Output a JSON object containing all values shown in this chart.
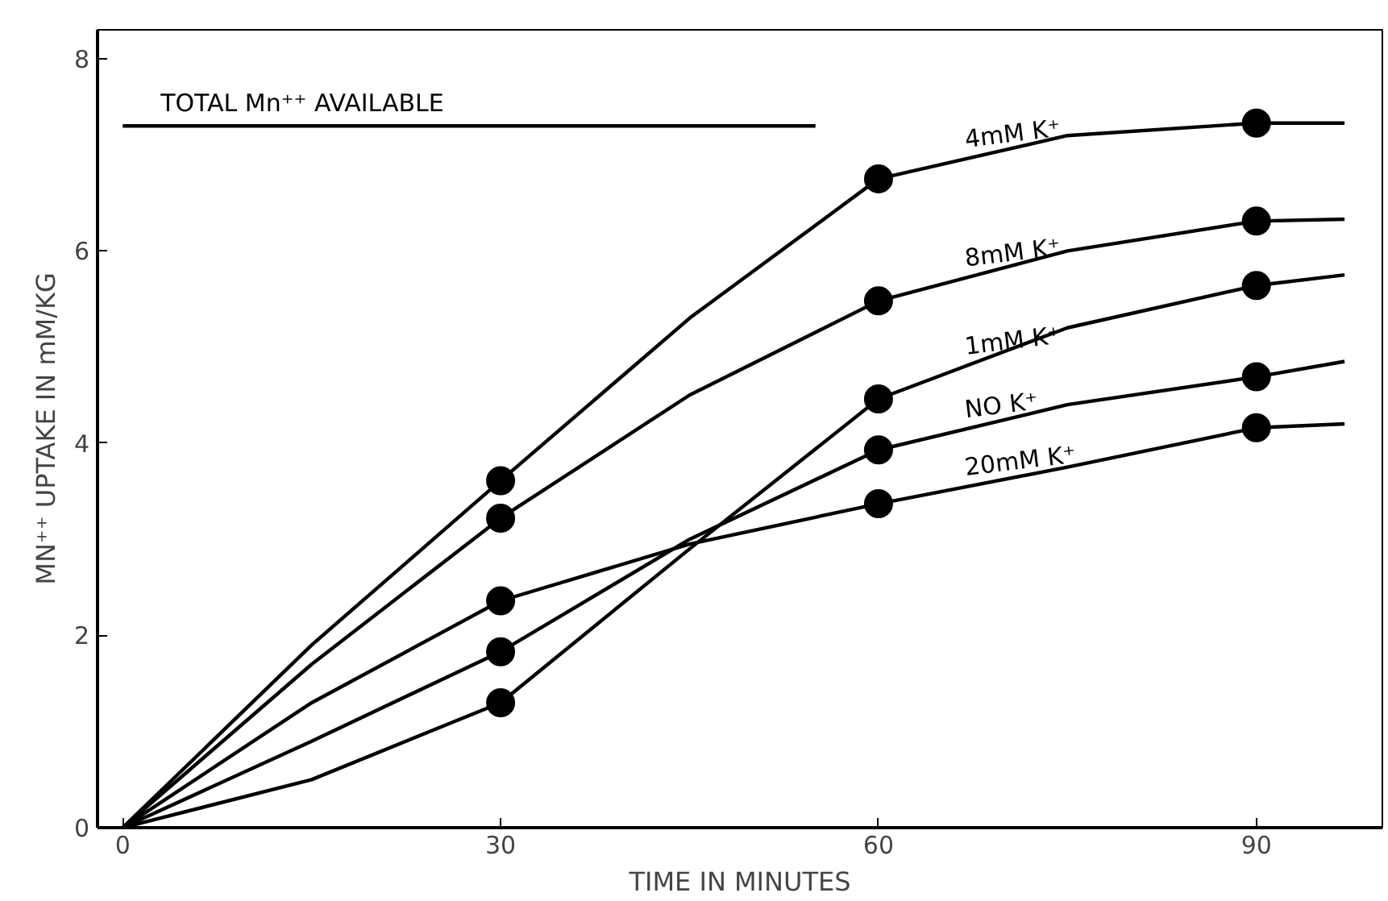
{
  "chart_data": {
    "type": "line",
    "xlabel": "TIME IN MINUTES",
    "ylabel": "MN⁺⁺ UPTAKE IN mM/KG",
    "xlim": [
      -2,
      100
    ],
    "ylim": [
      0,
      8.3
    ],
    "xticks": [
      0,
      30,
      60,
      90
    ],
    "yticks": [
      0,
      2,
      4,
      6,
      8
    ],
    "grid": false,
    "marker": "none",
    "line_style": "solid",
    "series": [
      {
        "name": "TOTAL Mn⁺⁺ AVAILABLE",
        "color": "#000000",
        "x": [
          0,
          55
        ],
        "values": [
          7.3,
          7.3
        ]
      },
      {
        "name": "4mM K⁺",
        "color": "#000000",
        "x": [
          0,
          15,
          30,
          45,
          60,
          75,
          90,
          97
        ],
        "values": [
          0,
          1.9,
          3.61,
          5.3,
          6.75,
          7.2,
          7.33,
          7.33
        ]
      },
      {
        "name": "8mM K⁺",
        "color": "#000000",
        "x": [
          0,
          15,
          30,
          45,
          60,
          75,
          90,
          97
        ],
        "values": [
          0,
          1.7,
          3.22,
          4.5,
          5.48,
          6.0,
          6.31,
          6.33
        ]
      },
      {
        "name": "1mM K⁺",
        "color": "#000000",
        "x": [
          0,
          15,
          30,
          45,
          60,
          75,
          90,
          97
        ],
        "values": [
          0,
          0.5,
          1.3,
          2.9,
          4.46,
          5.2,
          5.64,
          5.75
        ]
      },
      {
        "name": "NO K⁺",
        "color": "#000000",
        "x": [
          0,
          15,
          30,
          45,
          60,
          75,
          90,
          97
        ],
        "values": [
          0,
          0.9,
          1.83,
          3.0,
          3.93,
          4.4,
          4.69,
          4.85
        ]
      },
      {
        "name": "20mM K⁺",
        "color": "#000000",
        "x": [
          0,
          15,
          30,
          45,
          60,
          75,
          90,
          97
        ],
        "values": [
          0,
          1.3,
          2.36,
          2.95,
          3.37,
          3.75,
          4.16,
          4.2
        ]
      },
      {
        "type": "scatter",
        "marker": "circle",
        "color": "#000000",
        "x": [
          30,
          60,
          90
        ],
        "values": [
          3.61,
          6.75,
          7.33
        ]
      },
      {
        "type": "scatter",
        "marker": "circle",
        "color": "#000000",
        "x": [
          30,
          60,
          90
        ],
        "values": [
          3.22,
          5.48,
          6.31
        ]
      },
      {
        "type": "scatter",
        "marker": "circle",
        "color": "#000000",
        "x": [
          30,
          60,
          90
        ],
        "values": [
          1.3,
          4.46,
          5.64
        ]
      },
      {
        "type": "scatter",
        "marker": "circle",
        "color": "#000000",
        "x": [
          30,
          60,
          90
        ],
        "values": [
          1.83,
          3.93,
          4.69
        ]
      },
      {
        "type": "scatter",
        "marker": "circle",
        "color": "#000000",
        "x": [
          30,
          60,
          90
        ],
        "values": [
          2.36,
          3.37,
          4.16
        ]
      }
    ]
  }
}
